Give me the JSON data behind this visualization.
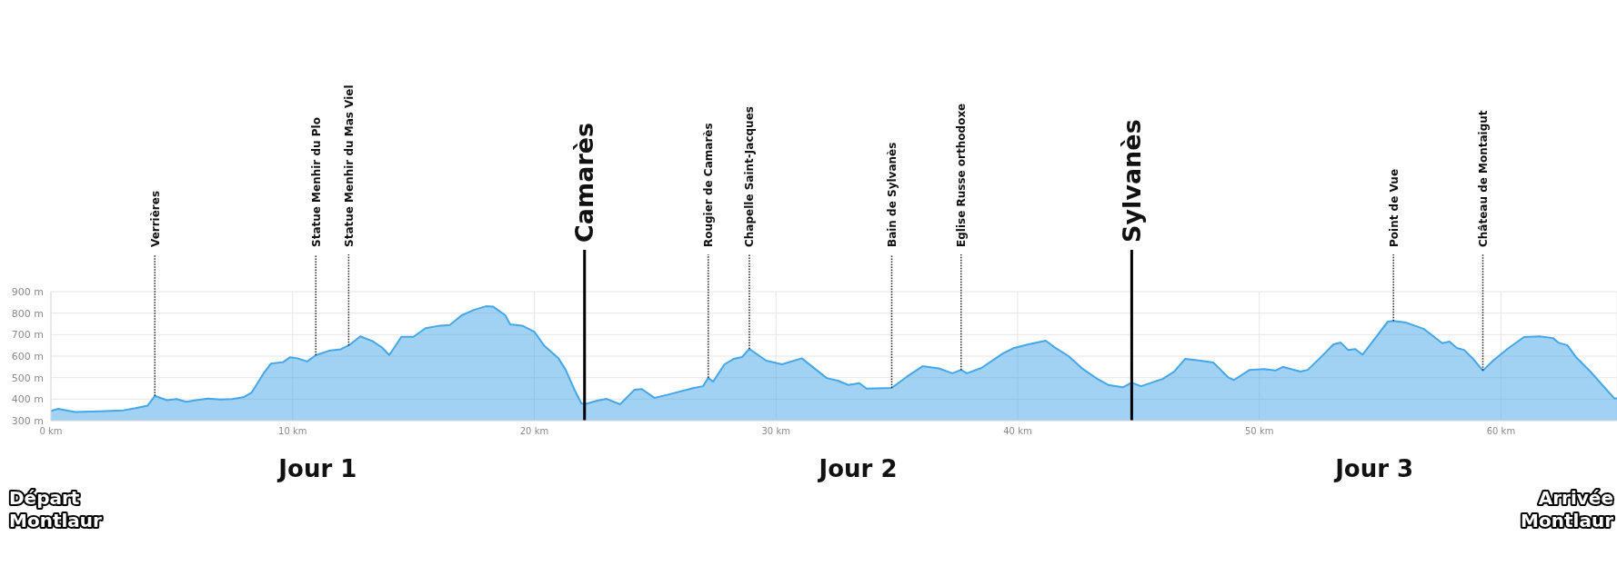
{
  "chart_data": {
    "type": "area",
    "color": "#45a6e8",
    "grid": true,
    "x": [
      0,
      0.3,
      1,
      2,
      3,
      3.5,
      4,
      4.3,
      4.8,
      5.2,
      5.6,
      6,
      6.5,
      7,
      7.5,
      8,
      8.3,
      8.8,
      9.1,
      9.6,
      9.9,
      10.2,
      10.6,
      10.96,
      11.5,
      12,
      12.32,
      12.8,
      13.3,
      13.7,
      14,
      14.5,
      15,
      15.5,
      16,
      16.5,
      17,
      17.5,
      18,
      18.3,
      18.8,
      19,
      19.5,
      20,
      20.4,
      21,
      21.3,
      21.7,
      21.95,
      22.08,
      22.6,
      23,
      23.55,
      24.15,
      24.45,
      24.97,
      25.57,
      26.6,
      26.98,
      27.2,
      27.4,
      27.87,
      28.25,
      28.6,
      28.9,
      29.6,
      30.25,
      31.07,
      31.67,
      32.1,
      32.56,
      33,
      33.45,
      33.75,
      34.79,
      35.4,
      36.07,
      36.74,
      37.3,
      37.66,
      37.9,
      38.5,
      39.4,
      39.85,
      40.45,
      41.16,
      41.5,
      42.1,
      42.7,
      43.3,
      43.75,
      44.35,
      44.72,
      45.1,
      46,
      46.47,
      46.93,
      47.5,
      48.1,
      48.73,
      48.95,
      49.6,
      50.2,
      50.67,
      50.97,
      51.7,
      52,
      52.5,
      53.07,
      53.37,
      53.67,
      53.97,
      54.27,
      54.72,
      55.32,
      55.55,
      56.07,
      56.82,
      57.57,
      57.87,
      58.17,
      58.47,
      58.85,
      59.25,
      59.67,
      60.27,
      60.95,
      61.6,
      62.15,
      62.37,
      62.75,
      63.1,
      63.7,
      64.7,
      64.8
    ],
    "values": [
      345,
      355,
      340,
      343,
      348,
      358,
      370,
      415,
      395,
      400,
      388,
      395,
      402,
      398,
      400,
      410,
      430,
      520,
      565,
      572,
      595,
      590,
      575,
      604,
      625,
      632,
      650,
      692,
      670,
      640,
      605,
      690,
      690,
      730,
      740,
      745,
      790,
      815,
      832,
      830,
      790,
      748,
      742,
      714,
      650,
      590,
      536,
      435,
      380,
      376,
      393,
      401,
      376,
      444,
      447,
      406,
      422,
      452,
      460,
      500,
      481,
      562,
      587,
      596,
      634,
      579,
      562,
      590,
      536,
      498,
      486,
      466,
      474,
      449,
      452,
      503,
      553,
      543,
      520,
      536,
      520,
      545,
      613,
      638,
      655,
      672,
      643,
      601,
      540,
      494,
      466,
      455,
      477,
      460,
      494,
      528,
      587,
      580,
      570,
      500,
      489,
      536,
      540,
      533,
      550,
      528,
      536,
      590,
      655,
      663,
      629,
      633,
      607,
      672,
      761,
      764,
      756,
      726,
      660,
      668,
      638,
      629,
      587,
      533,
      579,
      634,
      689,
      692,
      684,
      663,
      650,
      596,
      528,
      402,
      405
    ],
    "xlim": [
      0,
      64.8
    ],
    "xticks": [
      {
        "value": 0,
        "label": "0 km"
      },
      {
        "value": 10,
        "label": "10 km"
      },
      {
        "value": 20,
        "label": "20 km"
      },
      {
        "value": 30,
        "label": "30 km"
      },
      {
        "value": 40,
        "label": "40 km"
      },
      {
        "value": 50,
        "label": "50 km"
      },
      {
        "value": 60,
        "label": "60 km"
      }
    ],
    "ylim": [
      300,
      900
    ],
    "yticks": [
      {
        "value": 300,
        "label": "300 m"
      },
      {
        "value": 400,
        "label": "400 m"
      },
      {
        "value": 500,
        "label": "500 m"
      },
      {
        "value": 600,
        "label": "600 m"
      },
      {
        "value": 700,
        "label": "700 m"
      },
      {
        "value": 800,
        "label": "800 m"
      },
      {
        "value": 900,
        "label": "900 m"
      }
    ],
    "ref_lines": [
      {
        "axis": "x",
        "value": 4.3,
        "label": "Verrières",
        "line_style": "dotted",
        "color": "#222222"
      },
      {
        "axis": "x",
        "value": 10.96,
        "label": "Statue Menhir du Plo",
        "line_style": "dotted",
        "color": "#222222"
      },
      {
        "axis": "x",
        "value": 12.32,
        "label": "Statue Menhir du Mas Viel",
        "line_style": "dotted",
        "color": "#222222"
      },
      {
        "axis": "x",
        "value": 22.08,
        "label": "Camarès",
        "line_style": "solid",
        "color": "#000000"
      },
      {
        "axis": "x",
        "value": 27.2,
        "label": "Rougier de Camarès",
        "line_style": "dotted",
        "color": "#222222"
      },
      {
        "axis": "x",
        "value": 28.9,
        "label": "Chapelle Saint-Jacques",
        "line_style": "dotted",
        "color": "#222222"
      },
      {
        "axis": "x",
        "value": 34.79,
        "label": "Bain de Sylvanès",
        "line_style": "dotted",
        "color": "#222222"
      },
      {
        "axis": "x",
        "value": 37.66,
        "label": "Eglise Russe orthodoxe",
        "line_style": "dotted",
        "color": "#222222"
      },
      {
        "axis": "x",
        "value": 44.72,
        "label": "Sylvanès",
        "line_style": "solid",
        "color": "#000000"
      },
      {
        "axis": "x",
        "value": 55.55,
        "label": "Point de Vue",
        "line_style": "dotted",
        "color": "#222222"
      },
      {
        "axis": "x",
        "value": 59.25,
        "label": "Château de Montaigut",
        "line_style": "dotted",
        "color": "#222222"
      }
    ],
    "annotations": [
      "Départ\nMontlaur",
      "Jour 1",
      "Jour 2",
      "Jour 3",
      "Arrivée\nMontlaur"
    ]
  }
}
